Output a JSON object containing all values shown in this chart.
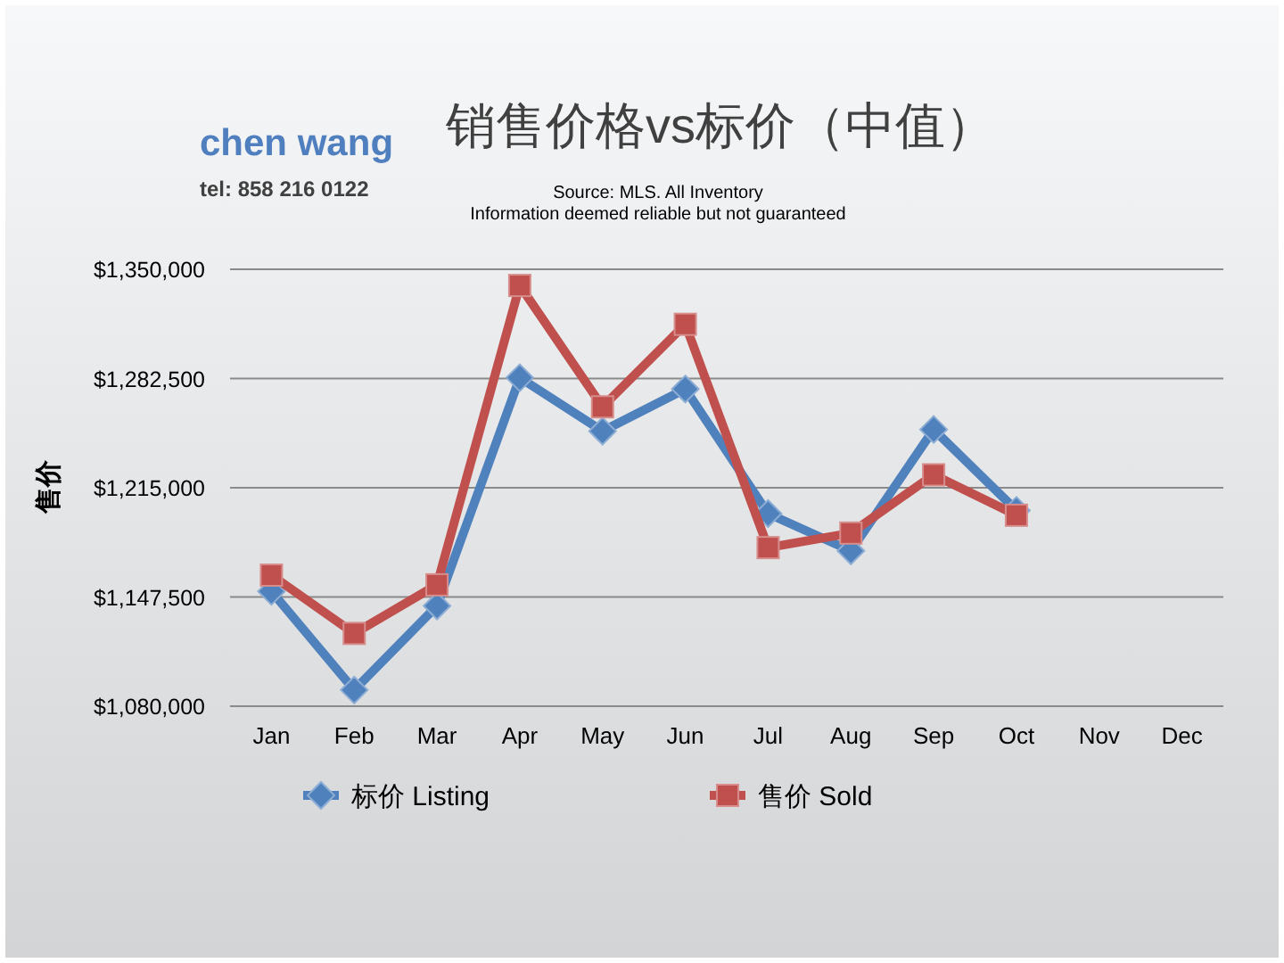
{
  "chart_data": {
    "type": "line",
    "title": "销售价格vs标价（中值）",
    "ylabel": "售价",
    "categories": [
      "Jan",
      "Feb",
      "Mar",
      "Apr",
      "May",
      "Jun",
      "Jul",
      "Aug",
      "Sep",
      "Oct",
      "Nov",
      "Dec"
    ],
    "series": [
      {
        "name": "标价 Listing",
        "color": "#4f81bd",
        "marker": "diamond",
        "values": [
          1151000,
          1090000,
          1142000,
          1283000,
          1250000,
          1276000,
          1199000,
          1176000,
          1251000,
          1201000,
          null,
          null
        ]
      },
      {
        "name": "售价 Sold",
        "color": "#c0504d",
        "marker": "square",
        "values": [
          1161000,
          1125000,
          1155000,
          1340000,
          1265000,
          1316000,
          1178000,
          1187000,
          1223000,
          1198000,
          null,
          null
        ]
      }
    ],
    "ylim": [
      1080000,
      1350000
    ],
    "yticks": [
      {
        "value": 1080000,
        "label": "$1,080,000"
      },
      {
        "value": 1147500,
        "label": "$1,147,500"
      },
      {
        "value": 1215000,
        "label": "$1,215,000"
      },
      {
        "value": 1282500,
        "label": "$1,282,500"
      },
      {
        "value": 1350000,
        "label": "$1,350,000"
      }
    ],
    "grid": "y",
    "legend": "bottom",
    "line_style": "solid",
    "annotations": [
      "chen wang",
      "tel: 858 216 0122",
      "Source: MLS. All Inventory",
      "Information deemed reliable but not guaranteed"
    ]
  }
}
